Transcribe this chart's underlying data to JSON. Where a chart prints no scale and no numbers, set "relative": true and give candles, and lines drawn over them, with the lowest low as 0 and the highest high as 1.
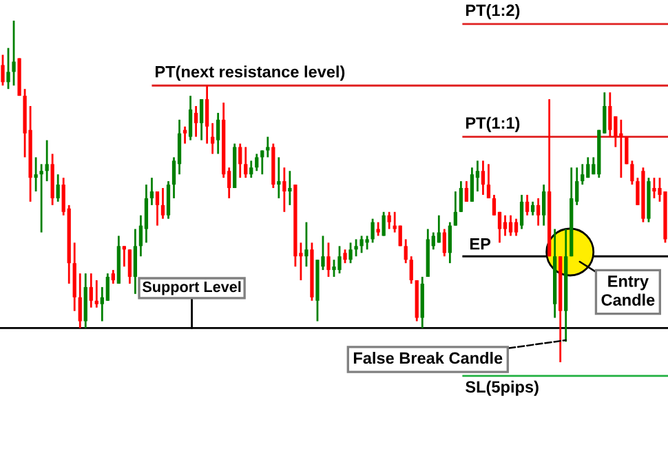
{
  "chart_data": {
    "type": "candlestick",
    "relative": true,
    "categories": [
      null,
      null,
      null,
      null,
      null,
      null,
      null,
      null,
      null,
      null,
      null,
      null,
      null,
      null,
      null,
      null,
      null,
      null,
      null,
      null,
      null,
      null,
      null,
      null,
      null,
      null,
      null,
      null,
      null,
      null,
      null,
      null,
      null,
      null,
      null,
      null,
      null,
      null,
      null,
      null,
      null,
      null,
      null,
      null,
      null,
      null,
      null,
      null,
      null,
      null,
      null,
      null,
      null,
      null,
      null,
      null,
      null,
      null,
      null,
      null,
      null,
      null,
      null,
      null,
      null,
      null,
      null,
      null,
      null,
      null,
      null,
      null,
      null,
      null,
      null,
      null,
      null,
      null,
      null,
      null,
      null,
      null,
      null,
      null,
      null,
      null,
      null,
      null,
      null,
      null,
      null,
      null,
      null,
      null,
      null,
      null,
      null,
      null,
      null,
      null,
      null,
      null,
      null,
      null,
      null,
      null,
      null,
      null,
      null,
      null,
      null,
      null,
      null,
      null,
      null,
      null,
      null,
      null,
      null,
      null,
      null
    ],
    "ohlc": [
      [
        0.87,
        0.9,
        0.81,
        0.82
      ],
      [
        0.82,
        0.92,
        0.8,
        0.85
      ],
      [
        0.85,
        1.0,
        0.81,
        0.88
      ],
      [
        0.89,
        0.89,
        0.78,
        0.78
      ],
      [
        0.78,
        0.8,
        0.6,
        0.67
      ],
      [
        0.68,
        0.75,
        0.47,
        0.54
      ],
      [
        0.54,
        0.6,
        0.5,
        0.55
      ],
      [
        0.55,
        0.58,
        0.38,
        0.56
      ],
      [
        0.56,
        0.65,
        0.53,
        0.58
      ],
      [
        0.58,
        0.61,
        0.46,
        0.48
      ],
      [
        0.48,
        0.55,
        0.47,
        0.52
      ],
      [
        0.52,
        0.54,
        0.43,
        0.44
      ],
      [
        0.45,
        0.46,
        0.23,
        0.29
      ],
      [
        0.29,
        0.35,
        0.15,
        0.19
      ],
      [
        0.19,
        0.26,
        0.1,
        0.12
      ],
      [
        0.12,
        0.26,
        0.1,
        0.22
      ],
      [
        0.22,
        0.26,
        0.16,
        0.18
      ],
      [
        0.18,
        0.24,
        0.16,
        0.17
      ],
      [
        0.17,
        0.22,
        0.12,
        0.19
      ],
      [
        0.18,
        0.26,
        0.18,
        0.25
      ],
      [
        0.26,
        0.27,
        0.23,
        0.24
      ],
      [
        0.23,
        0.37,
        0.23,
        0.34
      ],
      [
        0.34,
        0.34,
        0.28,
        0.33
      ],
      [
        0.33,
        0.33,
        0.23,
        0.25
      ],
      [
        0.25,
        0.39,
        0.2,
        0.34
      ],
      [
        0.34,
        0.43,
        0.31,
        0.4
      ],
      [
        0.39,
        0.52,
        0.35,
        0.48
      ],
      [
        0.48,
        0.54,
        0.46,
        0.5
      ],
      [
        0.5,
        0.5,
        0.4,
        0.46
      ],
      [
        0.46,
        0.51,
        0.42,
        0.43
      ],
      [
        0.43,
        0.53,
        0.42,
        0.52
      ],
      [
        0.52,
        0.6,
        0.48,
        0.59
      ],
      [
        0.58,
        0.71,
        0.55,
        0.67
      ],
      [
        0.68,
        0.69,
        0.64,
        0.67
      ],
      [
        0.66,
        0.78,
        0.65,
        0.74
      ],
      [
        0.73,
        0.75,
        0.66,
        0.7
      ],
      [
        0.7,
        0.77,
        0.65,
        0.77
      ],
      [
        0.77,
        0.81,
        0.64,
        0.69
      ],
      [
        0.66,
        0.7,
        0.61,
        0.64
      ],
      [
        0.65,
        0.73,
        0.61,
        0.71
      ],
      [
        0.71,
        0.76,
        0.54,
        0.55
      ],
      [
        0.56,
        0.57,
        0.48,
        0.51
      ],
      [
        0.51,
        0.64,
        0.51,
        0.63
      ],
      [
        0.63,
        0.64,
        0.54,
        0.58
      ],
      [
        0.58,
        0.63,
        0.54,
        0.55
      ],
      [
        0.55,
        0.59,
        0.54,
        0.57
      ],
      [
        0.57,
        0.61,
        0.56,
        0.6
      ],
      [
        0.6,
        0.62,
        0.55,
        0.62
      ],
      [
        0.62,
        0.66,
        0.6,
        0.63
      ],
      [
        0.63,
        0.64,
        0.51,
        0.52
      ],
      [
        0.52,
        0.6,
        0.48,
        0.53
      ],
      [
        0.53,
        0.57,
        0.44,
        0.5
      ],
      [
        0.5,
        0.56,
        0.46,
        0.51
      ],
      [
        0.52,
        0.52,
        0.28,
        0.31
      ],
      [
        0.32,
        0.35,
        0.24,
        0.31
      ],
      [
        0.31,
        0.41,
        0.28,
        0.33
      ],
      [
        0.33,
        0.35,
        0.18,
        0.19
      ],
      [
        0.18,
        0.3,
        0.12,
        0.3
      ],
      [
        0.28,
        0.37,
        0.27,
        0.31
      ],
      [
        0.31,
        0.35,
        0.25,
        0.27
      ],
      [
        0.27,
        0.3,
        0.25,
        0.28
      ],
      [
        0.27,
        0.34,
        0.26,
        0.31
      ],
      [
        0.32,
        0.33,
        0.29,
        0.3
      ],
      [
        0.3,
        0.35,
        0.29,
        0.33
      ],
      [
        0.33,
        0.36,
        0.31,
        0.34
      ],
      [
        0.34,
        0.37,
        0.32,
        0.36
      ],
      [
        0.35,
        0.37,
        0.33,
        0.36
      ],
      [
        0.36,
        0.42,
        0.35,
        0.41
      ],
      [
        0.39,
        0.41,
        0.37,
        0.38
      ],
      [
        0.37,
        0.44,
        0.37,
        0.43
      ],
      [
        0.43,
        0.44,
        0.39,
        0.41
      ],
      [
        0.4,
        0.44,
        0.38,
        0.39
      ],
      [
        0.4,
        0.4,
        0.34,
        0.34
      ],
      [
        0.34,
        0.36,
        0.29,
        0.3
      ],
      [
        0.3,
        0.31,
        0.23,
        0.24
      ],
      [
        0.24,
        0.24,
        0.12,
        0.13
      ],
      [
        0.13,
        0.25,
        0.1,
        0.23
      ],
      [
        0.25,
        0.39,
        0.25,
        0.36
      ],
      [
        0.34,
        0.38,
        0.33,
        0.37
      ],
      [
        0.35,
        0.43,
        0.35,
        0.38
      ],
      [
        0.38,
        0.39,
        0.31,
        0.32
      ],
      [
        0.32,
        0.41,
        0.29,
        0.4
      ],
      [
        0.4,
        0.5,
        0.4,
        0.44
      ],
      [
        0.44,
        0.53,
        0.44,
        0.51
      ],
      [
        0.51,
        0.53,
        0.47,
        0.47
      ],
      [
        0.47,
        0.57,
        0.47,
        0.55
      ],
      [
        0.54,
        0.59,
        0.5,
        0.56
      ],
      [
        0.56,
        0.59,
        0.49,
        0.52
      ],
      [
        0.52,
        0.58,
        0.48,
        0.48
      ],
      [
        0.48,
        0.49,
        0.43,
        0.43
      ],
      [
        0.44,
        0.44,
        0.35,
        0.39
      ],
      [
        0.41,
        0.43,
        0.37,
        0.39
      ],
      [
        0.41,
        0.43,
        0.37,
        0.38
      ],
      [
        0.41,
        0.42,
        0.37,
        0.38
      ],
      [
        0.4,
        0.49,
        0.39,
        0.47
      ],
      [
        0.47,
        0.49,
        0.43,
        0.44
      ],
      [
        0.44,
        0.47,
        0.43,
        0.46
      ],
      [
        0.46,
        0.48,
        0.4,
        0.43
      ],
      [
        0.43,
        0.52,
        0.4,
        0.5
      ],
      [
        0.5,
        0.77,
        0.31,
        0.31
      ],
      [
        0.17,
        0.39,
        0.13,
        0.31
      ],
      [
        0.31,
        0.31,
        0.0,
        0.15
      ],
      [
        0.15,
        0.39,
        0.06,
        0.31
      ],
      [
        0.31,
        0.57,
        0.31,
        0.48
      ],
      [
        0.47,
        0.57,
        0.46,
        0.53
      ],
      [
        0.53,
        0.58,
        0.52,
        0.55
      ],
      [
        0.54,
        0.6,
        0.54,
        0.58
      ],
      [
        0.55,
        0.6,
        0.55,
        0.58
      ],
      [
        0.55,
        0.68,
        0.54,
        0.68
      ],
      [
        0.67,
        0.79,
        0.67,
        0.75
      ],
      [
        0.75,
        0.79,
        0.66,
        0.68
      ],
      [
        0.72,
        0.72,
        0.63,
        0.66
      ],
      [
        0.67,
        0.71,
        0.54,
        0.66
      ],
      [
        0.66,
        0.66,
        0.58,
        0.58
      ],
      [
        0.58,
        0.59,
        0.52,
        0.53
      ],
      [
        0.53,
        0.54,
        0.46,
        0.46
      ],
      [
        0.56,
        0.57,
        0.41,
        0.42
      ],
      [
        0.42,
        0.54,
        0.41,
        0.53
      ],
      [
        0.51,
        0.54,
        0.48,
        0.5
      ],
      [
        0.51,
        0.54,
        0.47,
        0.49
      ],
      [
        0.5,
        0.5,
        0.35,
        0.36
      ]
    ],
    "ref_lines": [
      {
        "axis": "y",
        "value": 0.99,
        "label": "PT(1:2)",
        "color": "#e02020"
      },
      {
        "axis": "y",
        "value": 0.81,
        "label": "PT(next resistance level)",
        "color": "#e02020"
      },
      {
        "axis": "y",
        "value": 0.66,
        "label": "PT(1:1)",
        "color": "#e02020"
      },
      {
        "axis": "y",
        "value": 0.31,
        "label": "EP",
        "color": "#000000"
      },
      {
        "axis": "y",
        "value": 0.1,
        "label": "Support Level",
        "color": "#000000"
      },
      {
        "axis": "y",
        "value": -0.04,
        "label": "SL(5pips)",
        "color": "#20b040"
      }
    ],
    "annotations": [
      "Entry\nCandle",
      "False Break Candle"
    ]
  }
}
